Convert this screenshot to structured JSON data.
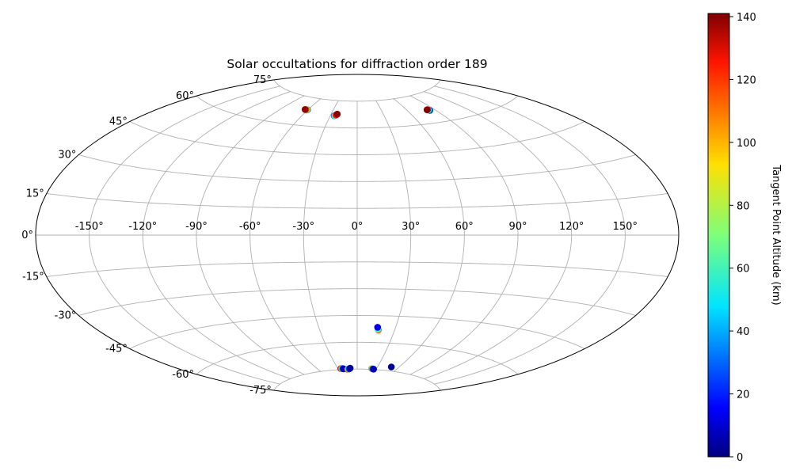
{
  "chart_data": {
    "type": "scatter",
    "projection": "aitoff",
    "title": "Solar occultations for diffraction order 189",
    "x_ticks": [
      "-150°",
      "-120°",
      "-90°",
      "-60°",
      "-30°",
      "0°",
      "30°",
      "60°",
      "90°",
      "120°",
      "150°"
    ],
    "y_ticks": [
      "75°",
      "60°",
      "45°",
      "30°",
      "15°",
      "0°",
      "-15°",
      "-30°",
      "-45°",
      "-60°",
      "-75°"
    ],
    "grid": true,
    "colorbar": {
      "label": "Tangent Point Altitude (km)",
      "colormap": "jet",
      "range": [
        0,
        141
      ],
      "ticks": [
        "0",
        "20",
        "40",
        "60",
        "80",
        "100",
        "120",
        "140"
      ]
    },
    "points": [
      {
        "lon": -60.5,
        "lat": 68.5,
        "alt": 30
      },
      {
        "lon": -61.5,
        "lat": 68.5,
        "alt": 80
      },
      {
        "lon": -62.5,
        "lat": 68.5,
        "alt": 115
      },
      {
        "lon": -63.5,
        "lat": 68.5,
        "alt": 138
      },
      {
        "lon": -25.5,
        "lat": 66.5,
        "alt": 5
      },
      {
        "lon": -25.0,
        "lat": 66.5,
        "alt": 60
      },
      {
        "lon": -24.0,
        "lat": 67.0,
        "alt": 120
      },
      {
        "lon": -23.0,
        "lat": 67.5,
        "alt": 140
      },
      {
        "lon": 84.0,
        "lat": 66.5,
        "alt": 25
      },
      {
        "lon": 83.0,
        "lat": 66.8,
        "alt": 60
      },
      {
        "lon": 82.5,
        "lat": 67.0,
        "alt": 125
      },
      {
        "lon": 82.0,
        "lat": 67.0,
        "alt": 140
      },
      {
        "lon": 17.0,
        "lat": -53.0,
        "alt": 110
      },
      {
        "lon": 16.5,
        "lat": -52.5,
        "alt": 60
      },
      {
        "lon": 16.0,
        "lat": -51.5,
        "alt": 15
      },
      {
        "lon": -25.5,
        "lat": -74.5,
        "alt": 135
      },
      {
        "lon": -24.5,
        "lat": -74.5,
        "alt": 110
      },
      {
        "lon": -23.5,
        "lat": -74.5,
        "alt": 70
      },
      {
        "lon": -22.5,
        "lat": -74.5,
        "alt": 30
      },
      {
        "lon": -21.5,
        "lat": -74.7,
        "alt": 10
      },
      {
        "lon": -15.5,
        "lat": -75.0,
        "alt": 125
      },
      {
        "lon": -14.5,
        "lat": -75.0,
        "alt": 100
      },
      {
        "lon": -13.5,
        "lat": -74.8,
        "alt": 55
      },
      {
        "lon": -12.5,
        "lat": -74.8,
        "alt": 25
      },
      {
        "lon": -11.0,
        "lat": -74.5,
        "alt": 5
      },
      {
        "lon": 22.5,
        "lat": -74.5,
        "alt": 105
      },
      {
        "lon": 23.5,
        "lat": -74.5,
        "alt": 80
      },
      {
        "lon": 24.5,
        "lat": -74.7,
        "alt": 30
      },
      {
        "lon": 26.0,
        "lat": -74.8,
        "alt": 8
      },
      {
        "lon": 49.5,
        "lat": -72.8,
        "alt": 3
      }
    ]
  }
}
